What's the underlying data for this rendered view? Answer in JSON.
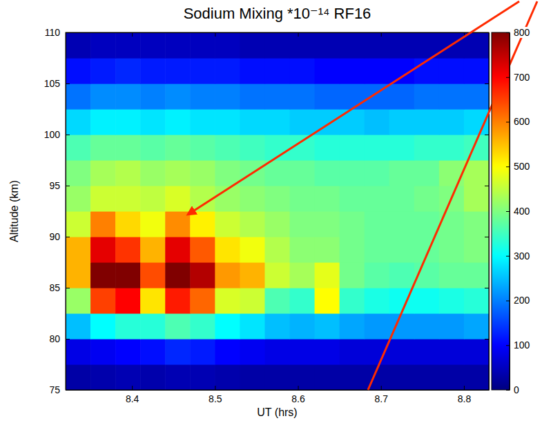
{
  "chart_data": {
    "type": "heatmap",
    "title": "Sodium Mixing *10⁻¹⁴ RF16",
    "xlabel": "UT (hrs)",
    "ylabel": "Altitude (km)",
    "x": [
      8.335,
      8.365,
      8.395,
      8.425,
      8.455,
      8.485,
      8.515,
      8.545,
      8.575,
      8.605,
      8.635,
      8.665,
      8.695,
      8.725,
      8.755,
      8.785,
      8.815
    ],
    "y": [
      76.25,
      78.75,
      81.25,
      83.75,
      86.25,
      88.75,
      91.25,
      93.75,
      96.25,
      98.75,
      101.25,
      103.75,
      106.25,
      108.75
    ],
    "z": [
      [
        30,
        35,
        40,
        35,
        40,
        40,
        35,
        30,
        30,
        30,
        30,
        30,
        30,
        30,
        30,
        30,
        30
      ],
      [
        80,
        90,
        100,
        110,
        130,
        120,
        100,
        90,
        80,
        80,
        80,
        70,
        70,
        70,
        70,
        70,
        70
      ],
      [
        250,
        300,
        330,
        330,
        360,
        340,
        300,
        280,
        250,
        240,
        250,
        230,
        220,
        220,
        220,
        220,
        230
      ],
      [
        420,
        650,
        700,
        520,
        680,
        620,
        470,
        460,
        360,
        340,
        500,
        340,
        320,
        310,
        310,
        320,
        330
      ],
      [
        560,
        800,
        800,
        640,
        800,
        760,
        580,
        560,
        460,
        430,
        480,
        390,
        370,
        360,
        370,
        380,
        380
      ],
      [
        560,
        720,
        660,
        560,
        720,
        630,
        520,
        490,
        440,
        410,
        410,
        390,
        380,
        380,
        380,
        390,
        400
      ],
      [
        460,
        600,
        530,
        490,
        590,
        510,
        460,
        440,
        420,
        400,
        400,
        390,
        380,
        380,
        380,
        390,
        400
      ],
      [
        420,
        460,
        460,
        450,
        470,
        440,
        420,
        410,
        400,
        390,
        390,
        380,
        380,
        380,
        390,
        400,
        430
      ],
      [
        400,
        430,
        440,
        420,
        430,
        420,
        400,
        390,
        380,
        380,
        370,
        370,
        370,
        380,
        380,
        410,
        430
      ],
      [
        360,
        380,
        380,
        370,
        380,
        370,
        360,
        350,
        340,
        340,
        330,
        330,
        330,
        330,
        340,
        340,
        350
      ],
      [
        270,
        290,
        290,
        280,
        290,
        280,
        280,
        270,
        270,
        260,
        260,
        260,
        250,
        260,
        260,
        260,
        270
      ],
      [
        190,
        210,
        210,
        200,
        210,
        200,
        200,
        190,
        190,
        190,
        180,
        180,
        180,
        180,
        190,
        190,
        190
      ],
      [
        110,
        120,
        130,
        120,
        120,
        120,
        120,
        110,
        110,
        110,
        100,
        100,
        100,
        100,
        110,
        110,
        110
      ],
      [
        40,
        50,
        50,
        50,
        50,
        50,
        50,
        40,
        40,
        40,
        40,
        40,
        40,
        40,
        40,
        40,
        40
      ]
    ],
    "xlim": [
      8.32,
      8.83
    ],
    "ylim": [
      75,
      110
    ],
    "xticks": [
      8.4,
      8.5,
      8.6,
      8.7,
      8.8
    ],
    "yticks": [
      75,
      80,
      85,
      90,
      95,
      100,
      105,
      110
    ],
    "colorbar_lim": [
      0,
      800
    ],
    "colorbar_ticks": [
      0,
      100,
      200,
      300,
      400,
      500,
      600,
      700,
      800
    ]
  }
}
